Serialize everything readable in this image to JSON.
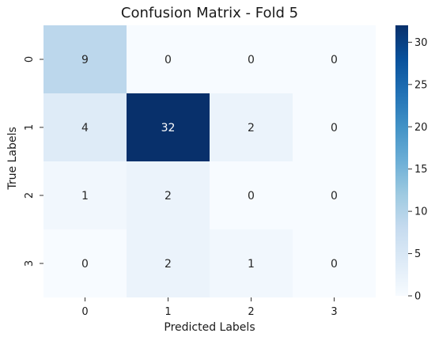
{
  "chart_data": {
    "type": "heatmap",
    "title": "Confusion Matrix - Fold 5",
    "xlabel": "Predicted Labels",
    "ylabel": "True Labels",
    "x_categories": [
      "0",
      "1",
      "2",
      "3"
    ],
    "y_categories": [
      "0",
      "1",
      "2",
      "3"
    ],
    "values": [
      [
        9,
        0,
        0,
        0
      ],
      [
        4,
        32,
        2,
        0
      ],
      [
        1,
        2,
        0,
        0
      ],
      [
        0,
        2,
        1,
        0
      ]
    ],
    "colorbar": {
      "min": 0,
      "max": 32,
      "ticks": [
        0,
        5,
        10,
        15,
        20,
        25,
        30
      ]
    },
    "colormap": [
      "#f7fbff",
      "#deebf7",
      "#c6dbef",
      "#9ecae1",
      "#6baed6",
      "#4292c6",
      "#2171b5",
      "#08519c",
      "#08306b"
    ]
  }
}
